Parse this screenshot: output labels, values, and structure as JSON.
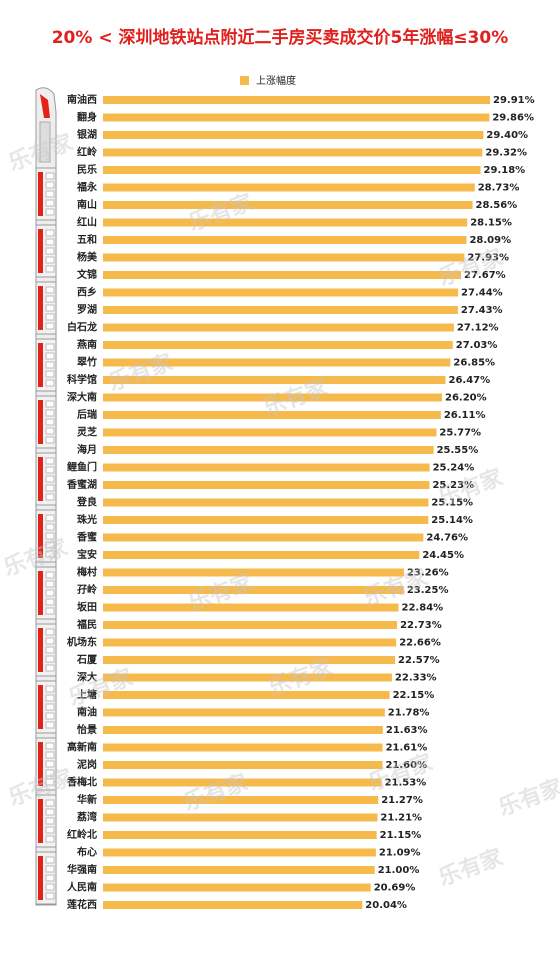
{
  "chart_data": {
    "type": "bar",
    "orientation": "horizontal",
    "title": "20% < 深圳地铁站点附近二手房买卖成交价5年涨幅≤30%",
    "watermark": "乐有家",
    "categories": [
      "南油西",
      "翻身",
      "银湖",
      "红岭",
      "民乐",
      "福永",
      "南山",
      "红山",
      "五和",
      "杨美",
      "文锦",
      "西乡",
      "罗湖",
      "白石龙",
      "燕南",
      "翠竹",
      "科学馆",
      "深大南",
      "后瑞",
      "灵芝",
      "海月",
      "鲤鱼门",
      "香蜜湖",
      "登良",
      "珠光",
      "香蜜",
      "宝安",
      "梅村",
      "孖岭",
      "坂田",
      "福民",
      "机场东",
      "石厦",
      "深大",
      "上塘",
      "南油",
      "怡景",
      "高新南",
      "泥岗",
      "香梅北",
      "华新",
      "荔湾",
      "红岭北",
      "布心",
      "华强南",
      "人民南",
      "莲花西"
    ],
    "series": [
      {
        "name": "上涨幅度",
        "color": "#f6b94c",
        "values": [
          29.91,
          29.86,
          29.4,
          29.32,
          29.18,
          28.73,
          28.56,
          28.15,
          28.09,
          27.93,
          27.67,
          27.44,
          27.43,
          27.12,
          27.03,
          26.85,
          26.47,
          26.2,
          26.11,
          25.77,
          25.55,
          25.24,
          25.23,
          25.15,
          25.14,
          24.76,
          24.45,
          23.26,
          23.25,
          22.84,
          22.73,
          22.66,
          22.57,
          22.33,
          22.15,
          21.78,
          21.63,
          21.61,
          21.6,
          21.53,
          21.27,
          21.21,
          21.15,
          21.09,
          21.0,
          20.69,
          20.04
        ],
        "value_labels": [
          "29.91%",
          "29.86%",
          "29.40%",
          "29.32%",
          "29.18%",
          "28.73%",
          "28.56%",
          "28.15%",
          "28.09%",
          "27.93%",
          "27.67%",
          "27.44%",
          "27.43%",
          "27.12%",
          "27.03%",
          "26.85%",
          "26.47%",
          "26.20%",
          "26.11%",
          "25.77%",
          "25.55%",
          "25.24%",
          "25.23%",
          "25.15%",
          "25.14%",
          "24.76%",
          "24.45%",
          "23.26%",
          "23.25%",
          "22.84%",
          "22.73%",
          "22.66%",
          "22.57%",
          "22.33%",
          "22.15%",
          "21.78%",
          "21.63%",
          "21.61%",
          "21.60%",
          "21.53%",
          "21.27%",
          "21.21%",
          "21.15%",
          "21.09%",
          "21.00%",
          "20.69%",
          "20.04%"
        ]
      }
    ],
    "legend": "top"
  }
}
